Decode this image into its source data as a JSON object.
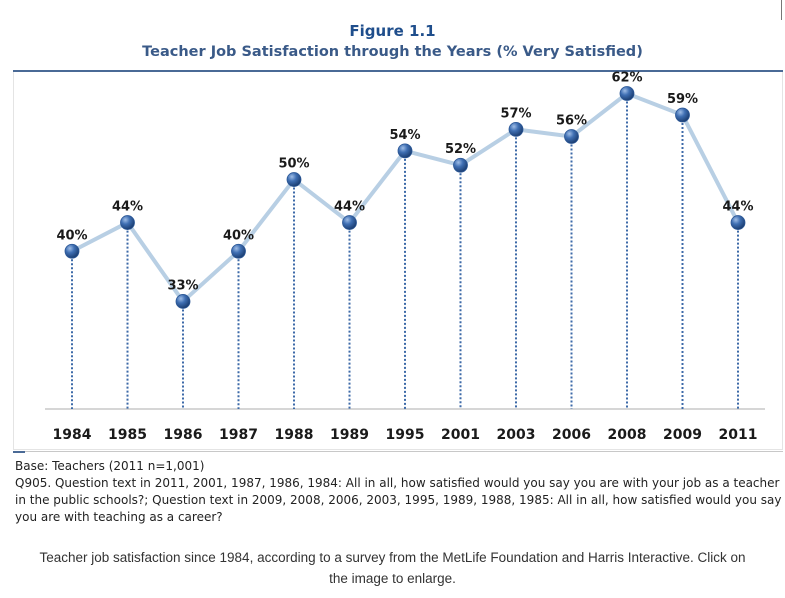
{
  "figure": {
    "number": "Figure 1.1",
    "title": "Teacher Job Satisfaction through the Years (% Very Satisfied)"
  },
  "chart_data": {
    "type": "line",
    "title": "Teacher Job Satisfaction through the Years (% Very Satisfied)",
    "categories": [
      "1984",
      "1985",
      "1986",
      "1987",
      "1988",
      "1989",
      "1995",
      "2001",
      "2003",
      "2006",
      "2008",
      "2009",
      "2011"
    ],
    "values": [
      40,
      44,
      33,
      40,
      50,
      44,
      54,
      52,
      57,
      56,
      62,
      59,
      44
    ],
    "data_labels": [
      "40%",
      "44%",
      "33%",
      "40%",
      "50%",
      "44%",
      "54%",
      "52%",
      "57%",
      "56%",
      "62%",
      "59%",
      "44%"
    ],
    "xlabel": "",
    "ylabel": "",
    "ylim": [
      18,
      65
    ],
    "grid": false,
    "legend": "none",
    "line_color": "#b8cfe4",
    "marker_color": "#2b5796",
    "dotted_color": "#3d6aa8",
    "axis_color": "#c8c8c8"
  },
  "notes": {
    "base": "Base: Teachers (2011 n=1,001)",
    "q_line1": "Q905. Question text in 2011, 2001, 1987, 1986, 1984: All in all, how satisfied would you say you are with your job as a teacher",
    "q_line2": "in the public schools?; Question text in 2009, 2008, 2006, 2003, 1995, 1989, 1988, 1985: All in all, how satisfied would you say",
    "q_line3": "you are with teaching as a career?"
  },
  "caption": {
    "line1": "Teacher job satisfaction since 1984, according to a survey from the MetLife Foundation and Harris Interactive. Click on",
    "line2": "the image to enlarge."
  }
}
